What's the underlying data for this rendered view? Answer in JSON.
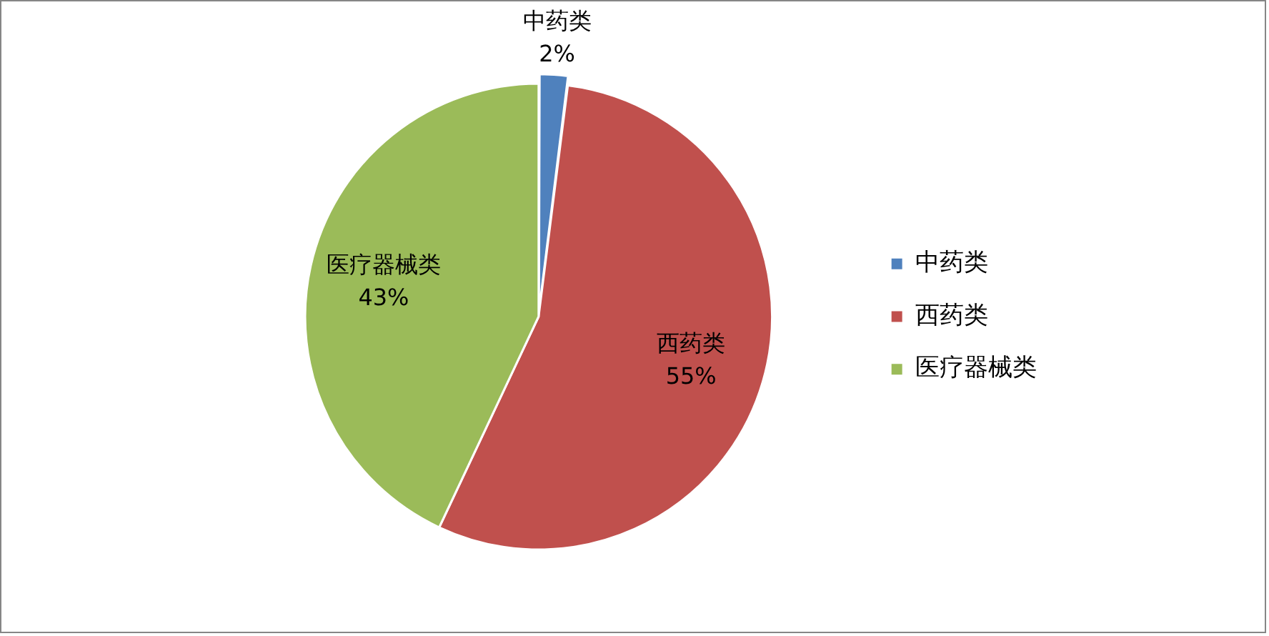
{
  "chart_data": {
    "type": "pie",
    "categories": [
      "中药类",
      "西药类",
      "医疗器械类"
    ],
    "values": [
      2,
      55,
      43
    ],
    "colors": [
      "#4f81bd",
      "#c0504d",
      "#9bbb59"
    ],
    "value_labels": [
      "2%",
      "55%",
      "43%"
    ],
    "legend": "right"
  }
}
